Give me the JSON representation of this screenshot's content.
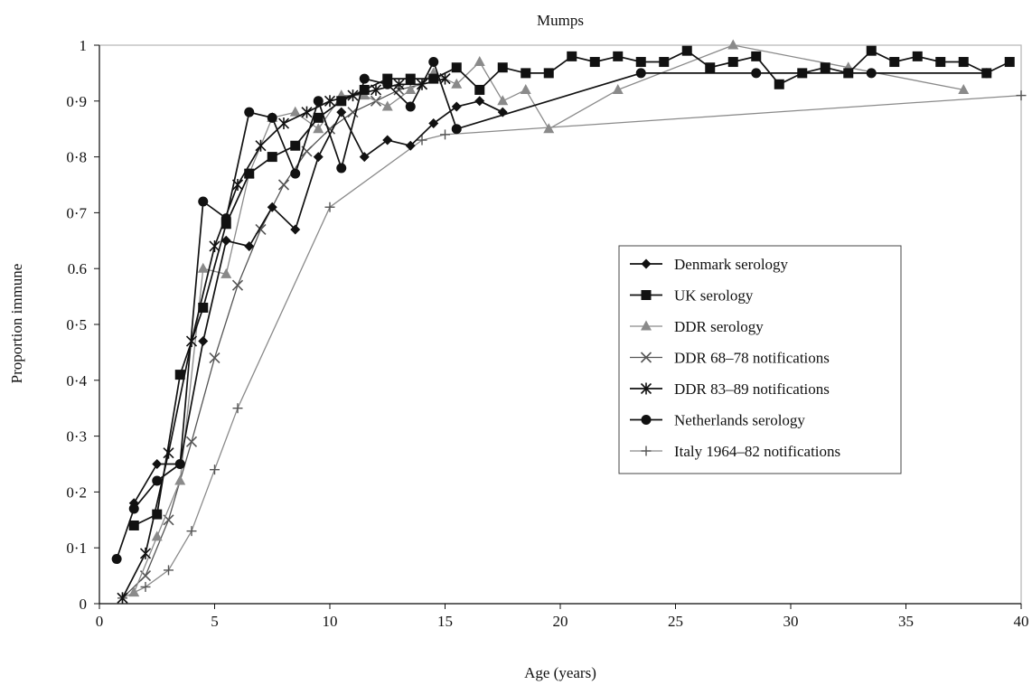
{
  "chart_data": {
    "type": "line",
    "title": "Mumps",
    "xlabel": "Age (years)",
    "ylabel": "Proportion immune",
    "xlim": [
      0,
      40
    ],
    "ylim": [
      0,
      1
    ],
    "x_ticks": [
      0,
      5,
      10,
      15,
      20,
      25,
      30,
      35,
      40
    ],
    "x_tick_labels": [
      "0",
      "5",
      "10",
      "15",
      "20",
      "25",
      "30",
      "35",
      "40"
    ],
    "y_ticks": [
      0,
      0.1,
      0.2,
      0.3,
      0.4,
      0.5,
      0.6,
      0.7,
      0.8,
      0.9,
      1
    ],
    "y_tick_labels": [
      "0",
      "0·1",
      "0·2",
      "0·3",
      "0·4",
      "0·5",
      "0.6",
      "0·7",
      "0·8",
      "0·9",
      "1"
    ],
    "grid": false,
    "legend_position": "center-right",
    "series": [
      {
        "name": "Denmark serology",
        "marker": "diamond",
        "color": "#111111",
        "marker_color": "#111111",
        "x": [
          1.5,
          2.5,
          3.5,
          4.5,
          5.5,
          6.5,
          7.5,
          8.5,
          9.5,
          10.5,
          11.5,
          12.5,
          13.5,
          14.5,
          15.5,
          16.5,
          17.5
        ],
        "y": [
          0.18,
          0.25,
          0.25,
          0.47,
          0.65,
          0.64,
          0.71,
          0.67,
          0.8,
          0.88,
          0.8,
          0.83,
          0.82,
          0.86,
          0.89,
          0.9,
          0.88
        ]
      },
      {
        "name": "UK serology",
        "marker": "square",
        "color": "#111111",
        "marker_color": "#111111",
        "x": [
          1.5,
          2.5,
          3.5,
          4.5,
          5.5,
          6.5,
          7.5,
          8.5,
          9.5,
          10.5,
          11.5,
          12.5,
          13.5,
          14.5,
          15.5,
          16.5,
          17.5,
          18.5,
          19.5,
          20.5,
          21.5,
          22.5,
          23.5,
          24.5,
          25.5,
          26.5,
          27.5,
          28.5,
          29.5,
          30.5,
          31.5,
          32.5,
          33.5,
          34.5,
          35.5,
          36.5,
          37.5,
          38.5,
          39.5
        ],
        "y": [
          0.14,
          0.16,
          0.41,
          0.53,
          0.68,
          0.77,
          0.8,
          0.82,
          0.87,
          0.9,
          0.92,
          0.94,
          0.94,
          0.94,
          0.96,
          0.92,
          0.96,
          0.95,
          0.95,
          0.98,
          0.97,
          0.98,
          0.97,
          0.97,
          0.99,
          0.96,
          0.97,
          0.98,
          0.93,
          0.95,
          0.96,
          0.95,
          0.99,
          0.97,
          0.98,
          0.97,
          0.97,
          0.95,
          0.97
        ]
      },
      {
        "name": "DDR serology",
        "marker": "triangle",
        "color": "#8a8a8a",
        "marker_color": "#8a8a8a",
        "x": [
          1.5,
          2.5,
          3.5,
          4.5,
          5.5,
          6.5,
          7.5,
          8.5,
          9.5,
          10.5,
          11.5,
          12.5,
          13.5,
          14.5,
          15.5,
          16.5,
          17.5,
          18.5,
          19.5,
          22.5,
          27.5,
          32.5,
          37.5
        ],
        "y": [
          0.02,
          0.12,
          0.22,
          0.6,
          0.59,
          0.77,
          0.87,
          0.88,
          0.85,
          0.91,
          0.91,
          0.89,
          0.92,
          0.95,
          0.93,
          0.97,
          0.9,
          0.92,
          0.85,
          0.92,
          1.0,
          0.96,
          0.92
        ]
      },
      {
        "name": "DDR 68–78 notifications",
        "marker": "x",
        "color": "#555555",
        "marker_color": "#555555",
        "x": [
          1,
          2,
          3,
          4,
          5,
          6,
          7,
          8,
          9,
          10,
          11,
          12,
          13,
          14,
          15
        ],
        "y": [
          0.01,
          0.05,
          0.15,
          0.29,
          0.44,
          0.57,
          0.67,
          0.75,
          0.81,
          0.85,
          0.88,
          0.9,
          0.92,
          0.93,
          0.94
        ]
      },
      {
        "name": "DDR 83–89 notifications",
        "marker": "star",
        "color": "#111111",
        "marker_color": "#111111",
        "x": [
          1,
          2,
          3,
          4,
          5,
          6,
          7,
          8,
          9,
          10,
          11,
          12,
          13,
          14,
          15
        ],
        "y": [
          0.01,
          0.09,
          0.27,
          0.47,
          0.64,
          0.75,
          0.82,
          0.86,
          0.88,
          0.9,
          0.91,
          0.92,
          0.93,
          0.93,
          0.94
        ]
      },
      {
        "name": "Netherlands serology",
        "marker": "circle",
        "color": "#111111",
        "marker_color": "#111111",
        "x": [
          0.75,
          1.5,
          2.5,
          3.5,
          4.5,
          5.5,
          6.5,
          7.5,
          8.5,
          9.5,
          10.5,
          11.5,
          12.5,
          13.5,
          14.5,
          15.5,
          23.5,
          28.5,
          33.5,
          38.5
        ],
        "y": [
          0.08,
          0.17,
          0.22,
          0.25,
          0.72,
          0.69,
          0.88,
          0.87,
          0.77,
          0.9,
          0.78,
          0.94,
          0.93,
          0.89,
          0.97,
          0.85,
          0.95,
          0.95,
          0.95,
          0.95
        ]
      },
      {
        "name": "Italy 1964–82 notifications",
        "marker": "plus",
        "color": "#8a8a8a",
        "marker_color": "#555555",
        "x": [
          1,
          2,
          3,
          4,
          5,
          6,
          10,
          14,
          15,
          40
        ],
        "y": [
          0.01,
          0.03,
          0.06,
          0.13,
          0.24,
          0.35,
          0.71,
          0.83,
          0.84,
          0.91
        ]
      }
    ]
  }
}
